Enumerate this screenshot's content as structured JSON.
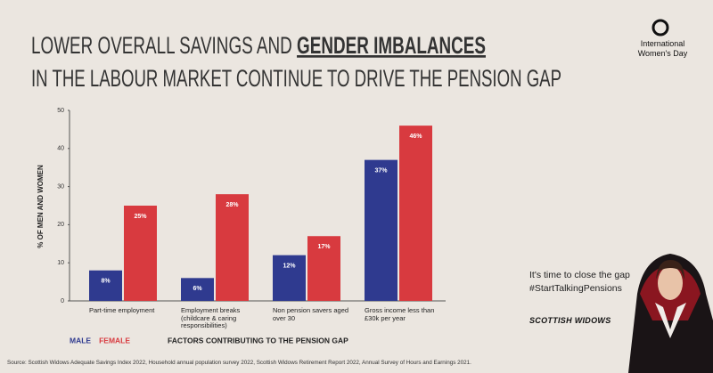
{
  "header": {
    "title_start": "LOWER OVERALL SAVINGS AND ",
    "title_emphasis": "GENDER IMBALANCES",
    "title_line2": "IN THE LABOUR MARKET CONTINUE TO DRIVE THE PENSION GAP"
  },
  "badge": "International Women's Day",
  "campaign": {
    "line1": "It's time to close the gap",
    "hashtag": "#StartTalkingPensions",
    "brand": "SCOTTISH WIDOWS"
  },
  "source": "Source: Scottish Widows Adequate Savings Index 2022, Household annual population survey 2022, Scottish Widows Retirement Report 2022, Annual Survey of Hours and Earnings 2021.",
  "chart_data": {
    "type": "bar",
    "categories": [
      "Part-time employment",
      "Employment breaks (childcare & caring responsibilities)",
      "Non pension savers aged over 30",
      "Gross income less than £30k per year"
    ],
    "series": [
      {
        "name": "MALE",
        "color": "#2f3a8f",
        "values": [
          8,
          6,
          12,
          37
        ],
        "value_labels": [
          "8%",
          "6%",
          "12%",
          "37%"
        ]
      },
      {
        "name": "FEMALE",
        "color": "#d83a3f",
        "values": [
          25,
          28,
          17,
          46
        ],
        "value_labels": [
          "25%",
          "28%",
          "17%",
          "46%"
        ]
      }
    ],
    "ylim": [
      0,
      50
    ],
    "yticks": [
      0,
      10,
      20,
      30,
      40,
      50
    ],
    "ylabel": "% OF MEN AND WOMEN",
    "xlabel": "FACTORS CONTRIBUTING TO THE PENSION GAP",
    "grid": false
  }
}
